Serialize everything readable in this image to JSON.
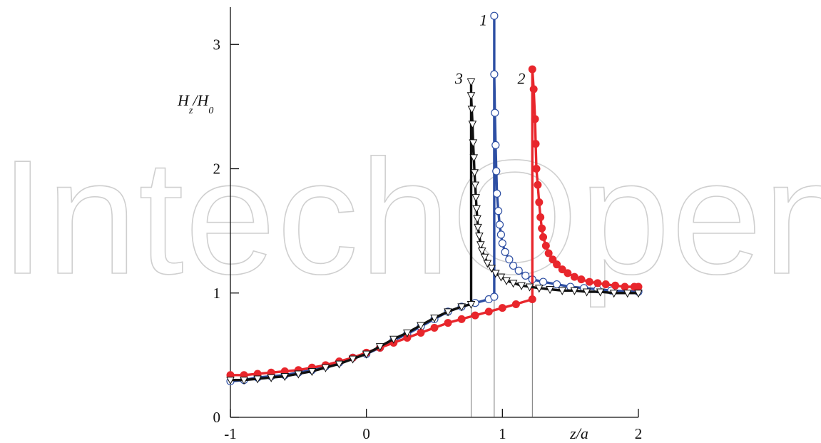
{
  "watermark": "IntechOpen",
  "chart_data": {
    "type": "line",
    "title": "",
    "xlabel": "z/a",
    "ylabel": {
      "main": "H",
      "sub1": "z",
      "slash": "/H",
      "sub2": "0"
    },
    "xlim": [
      -1,
      2
    ],
    "ylim": [
      0,
      3.3
    ],
    "x_ticks": [
      "-1",
      "0",
      "1",
      "2"
    ],
    "y_ticks": [
      "0",
      "1",
      "2",
      "3"
    ],
    "grid": false,
    "legend": "none",
    "series": [
      {
        "name": "1",
        "color": "#2e4fa3",
        "marker": "open-circle",
        "x": [
          -1.0,
          -0.9,
          -0.8,
          -0.7,
          -0.6,
          -0.5,
          -0.4,
          -0.3,
          -0.2,
          -0.1,
          0.0,
          0.1,
          0.2,
          0.3,
          0.4,
          0.5,
          0.6,
          0.7,
          0.8,
          0.9,
          0.94,
          0.94,
          0.94,
          0.945,
          0.95,
          0.955,
          0.96,
          0.97,
          0.98,
          0.99,
          1.0,
          1.02,
          1.05,
          1.08,
          1.12,
          1.17,
          1.22,
          1.3,
          1.4,
          1.5,
          1.6,
          1.7,
          1.8,
          2.0
        ],
        "y": [
          0.29,
          0.3,
          0.32,
          0.33,
          0.34,
          0.36,
          0.38,
          0.41,
          0.44,
          0.48,
          0.51,
          0.56,
          0.62,
          0.67,
          0.73,
          0.79,
          0.85,
          0.89,
          0.92,
          0.95,
          0.97,
          3.23,
          2.76,
          2.45,
          2.19,
          1.98,
          1.8,
          1.66,
          1.55,
          1.47,
          1.4,
          1.33,
          1.27,
          1.22,
          1.18,
          1.14,
          1.11,
          1.09,
          1.07,
          1.05,
          1.04,
          1.03,
          1.02,
          1.01
        ]
      },
      {
        "name": "2",
        "color": "#e8262c",
        "marker": "filled-circle",
        "x": [
          -1.0,
          -0.9,
          -0.8,
          -0.7,
          -0.6,
          -0.5,
          -0.4,
          -0.3,
          -0.2,
          -0.1,
          0.0,
          0.1,
          0.2,
          0.3,
          0.4,
          0.5,
          0.6,
          0.7,
          0.8,
          0.9,
          1.0,
          1.1,
          1.22,
          1.22,
          1.23,
          1.24,
          1.245,
          1.25,
          1.26,
          1.27,
          1.28,
          1.29,
          1.3,
          1.32,
          1.34,
          1.37,
          1.4,
          1.44,
          1.48,
          1.53,
          1.58,
          1.64,
          1.7,
          1.76,
          1.83,
          1.9,
          1.97,
          2.0
        ],
        "y": [
          0.34,
          0.34,
          0.35,
          0.36,
          0.37,
          0.38,
          0.4,
          0.42,
          0.45,
          0.48,
          0.52,
          0.56,
          0.6,
          0.64,
          0.68,
          0.72,
          0.76,
          0.79,
          0.82,
          0.85,
          0.88,
          0.91,
          0.95,
          2.8,
          2.64,
          2.4,
          2.2,
          2.0,
          1.87,
          1.73,
          1.61,
          1.52,
          1.45,
          1.38,
          1.32,
          1.27,
          1.23,
          1.19,
          1.16,
          1.13,
          1.11,
          1.09,
          1.08,
          1.07,
          1.06,
          1.05,
          1.05,
          1.05
        ]
      },
      {
        "name": "3",
        "color": "#111111",
        "marker": "open-triangle-down",
        "x": [
          -1.0,
          -0.9,
          -0.8,
          -0.7,
          -0.6,
          -0.5,
          -0.4,
          -0.3,
          -0.2,
          -0.1,
          0.0,
          0.1,
          0.2,
          0.3,
          0.4,
          0.5,
          0.6,
          0.7,
          0.77,
          0.77,
          0.77,
          0.775,
          0.78,
          0.785,
          0.79,
          0.795,
          0.8,
          0.805,
          0.81,
          0.815,
          0.82,
          0.83,
          0.84,
          0.85,
          0.87,
          0.89,
          0.92,
          0.95,
          0.99,
          1.03,
          1.08,
          1.14,
          1.2,
          1.27,
          1.35,
          1.44,
          1.53,
          1.62,
          1.72,
          1.82,
          1.92,
          2.0
        ],
        "y": [
          0.3,
          0.3,
          0.31,
          0.32,
          0.33,
          0.35,
          0.37,
          0.4,
          0.43,
          0.47,
          0.51,
          0.57,
          0.63,
          0.68,
          0.74,
          0.8,
          0.85,
          0.89,
          0.91,
          2.7,
          2.59,
          2.48,
          2.36,
          2.21,
          2.09,
          1.97,
          1.87,
          1.77,
          1.68,
          1.6,
          1.53,
          1.46,
          1.39,
          1.34,
          1.29,
          1.24,
          1.2,
          1.16,
          1.13,
          1.1,
          1.08,
          1.06,
          1.05,
          1.04,
          1.03,
          1.02,
          1.02,
          1.01,
          1.01,
          1.0,
          1.0,
          1.0
        ]
      }
    ],
    "dropline_x": [
      0.77,
      0.94,
      1.22
    ],
    "curve_labels": [
      {
        "text": "1",
        "x": 0.86,
        "y": 3.2
      },
      {
        "text": "2",
        "x": 1.14,
        "y": 2.73
      },
      {
        "text": "3",
        "x": 0.68,
        "y": 2.73
      }
    ]
  }
}
